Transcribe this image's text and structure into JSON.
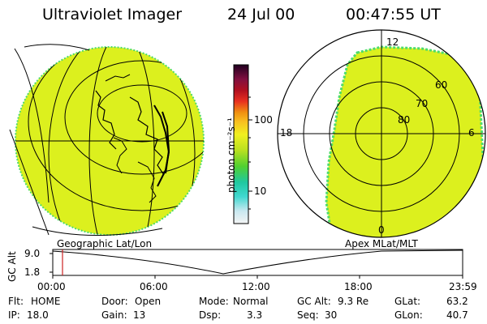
{
  "header": {
    "instrument": "Ultraviolet Imager",
    "date": "24 Jul 00",
    "time": "00:47:55 UT"
  },
  "colorbar": {
    "unit_label": "photon cm⁻²s⁻¹",
    "ticks": [
      "100",
      "10"
    ]
  },
  "polar_plot": {
    "labels": {
      "top": "12",
      "left": "18",
      "right": "6",
      "bottom": "0"
    },
    "rings": [
      "60",
      "70",
      "80"
    ]
  },
  "projections": {
    "left": "Geographic Lat/Lon",
    "right": "Apex MLat/MLT"
  },
  "altitude_plot": {
    "axis_label": "GC Alt",
    "ymax": "9.0",
    "ymin": "1.8",
    "xticks": [
      "00:00",
      "06:00",
      "12:00",
      "18:00",
      "23:59"
    ]
  },
  "info": {
    "row1": [
      {
        "key": "Flt:",
        "value": "HOME"
      },
      {
        "key": "Door:",
        "value": "Open"
      },
      {
        "key": "Mode:",
        "value": "Normal"
      },
      {
        "key": "GC Alt:",
        "value": "9.3 Re"
      },
      {
        "key": "GLat:",
        "value": "63.2"
      }
    ],
    "row2": [
      {
        "key": "IP:",
        "value": "18.0"
      },
      {
        "key": "Gain:",
        "value": "13"
      },
      {
        "key": "Dsp:",
        "value": "3.3"
      },
      {
        "key": "Seq:",
        "value": "30"
      },
      {
        "key": "GLon:",
        "value": "40.7"
      }
    ]
  },
  "colors": {
    "aurora_fill": "#dcf01e",
    "aurora_edge": "#4ddc6a",
    "cursor": "#cc2222"
  }
}
